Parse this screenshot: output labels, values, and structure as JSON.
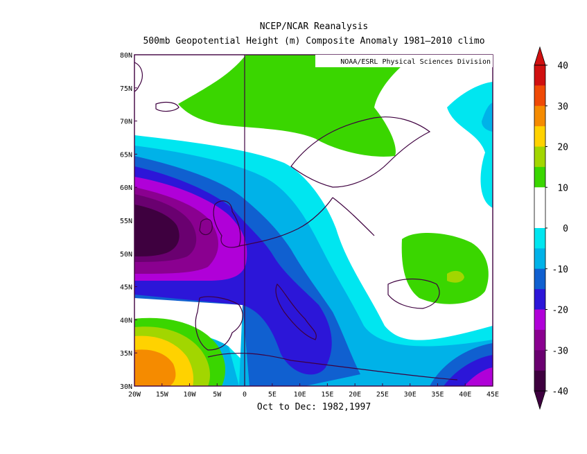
{
  "title_line1": "NCEP/NCAR Reanalysis",
  "title_line2": "500mb Geopotential Height (m) Composite Anomaly 1981–2010 climo",
  "credit": "NOAA/ESRL Physical Sciences Division",
  "footer": "Oct to Dec: 1982,1997",
  "lat_labels": [
    "80N",
    "75N",
    "70N",
    "65N",
    "60N",
    "55N",
    "50N",
    "45N",
    "40N",
    "35N",
    "30N"
  ],
  "lon_labels": [
    "20W",
    "15W",
    "10W",
    "5W",
    "0",
    "5E",
    "10E",
    "15E",
    "20E",
    "25E",
    "30E",
    "35E",
    "40E",
    "45E"
  ],
  "colorbar_labels": [
    "40",
    "30",
    "20",
    "10",
    "0",
    "-10",
    "-20",
    "-30",
    "-40"
  ],
  "colorbar_colors": [
    "#d01010",
    "#ef4a06",
    "#f58b00",
    "#ffd200",
    "#a2d600",
    "#3ad600",
    "#ffffff",
    "#ffffff",
    "#00e6f0",
    "#00b2e8",
    "#1060d0",
    "#2c16d8",
    "#b000d8",
    "#8a0090",
    "#6a0070",
    "#3e003f"
  ],
  "chart_data": {
    "type": "heatmap",
    "variable": "500mb Geopotential Height (m) Composite Anomaly",
    "x_range": [
      -20,
      45
    ],
    "y_range": [
      30,
      80
    ],
    "contour_levels": [
      -40,
      -35,
      -30,
      -25,
      -20,
      -15,
      -10,
      -5,
      0,
      5,
      10,
      15,
      20,
      25,
      30,
      35,
      40
    ],
    "features": [
      {
        "region": "west of British Isles",
        "center_lon": -16,
        "center_lat": 53,
        "min_value": -40
      },
      {
        "region": "Italy / central Mediterranean",
        "center_lon": 13,
        "center_lat": 41,
        "min_value": -25
      },
      {
        "region": "off Morocco",
        "center_lon": -16,
        "center_lat": 33,
        "max_value": 25
      },
      {
        "region": "Ukraine / Black Sea",
        "center_lon": 38,
        "center_lat": 48,
        "max_value": 10
      },
      {
        "region": "Norwegian Sea / Scandinavia",
        "center_lon": 5,
        "center_lat": 74,
        "max_value": 10
      },
      {
        "region": "eastern Mediterranean",
        "center_lon": 42,
        "center_lat": 32,
        "min_value": -25
      }
    ]
  }
}
